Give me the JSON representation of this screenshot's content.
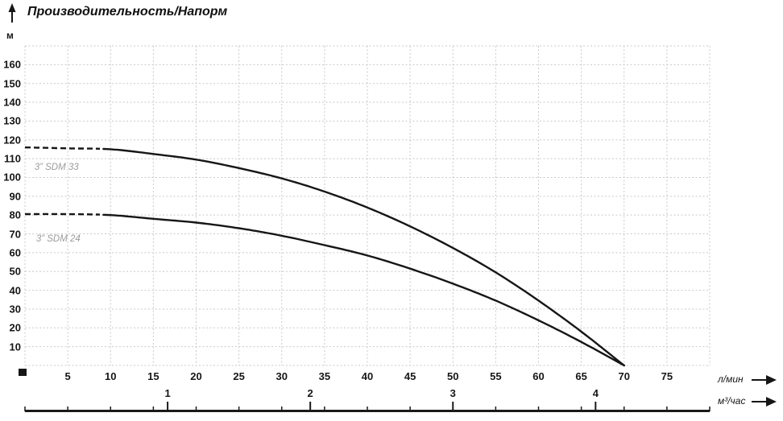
{
  "header": {
    "title": "Производительность/Напорм"
  },
  "colors": {
    "curve": "#161616",
    "grid": "#c9c9c9",
    "axis_text": "#161616",
    "series_label": "#9b9b9b",
    "scale_bar": "#1a1a1a"
  },
  "icons": {
    "up_arrow": "axis-up-arrow",
    "right_arrow_lmin": "axis-right-arrow",
    "right_arrow_m3h": "axis-right-arrow",
    "origin_marker": "origin-square-marker"
  },
  "chart_data": {
    "type": "line",
    "title": "Производительность/Напорм",
    "xlabel": "л/мин",
    "ylabel": "м",
    "xlim": [
      0,
      80
    ],
    "ylim": [
      0,
      170
    ],
    "x_grid_step": 5,
    "y_grid_step": 10,
    "grid": "dotted",
    "x_ticks": [
      5,
      10,
      15,
      20,
      25,
      30,
      35,
      40,
      45,
      50,
      55,
      60,
      65,
      70,
      75
    ],
    "y_ticks": [
      10,
      20,
      30,
      40,
      50,
      60,
      70,
      80,
      90,
      100,
      110,
      120,
      130,
      140,
      150,
      160
    ],
    "secondary_x": {
      "unit": "м³/час",
      "ticks": [
        1,
        2,
        3,
        4
      ],
      "lmin_per_unit": 16.6667
    },
    "series": [
      {
        "name": "3” SDM 33",
        "dash_until": 9,
        "label_pos": {
          "q": 1.1,
          "h": 108
        },
        "points": [
          [
            0,
            116
          ],
          [
            5,
            115.5
          ],
          [
            10,
            115
          ],
          [
            15,
            112.5
          ],
          [
            20,
            109.5
          ],
          [
            25,
            105
          ],
          [
            30,
            99.5
          ],
          [
            35,
            92.5
          ],
          [
            40,
            84
          ],
          [
            45,
            74
          ],
          [
            50,
            62.5
          ],
          [
            55,
            49.5
          ],
          [
            60,
            34.5
          ],
          [
            65,
            18
          ],
          [
            70,
            0
          ]
        ]
      },
      {
        "name": "3” SDM 24",
        "dash_until": 9,
        "label_pos": {
          "q": 1.3,
          "h": 70
        },
        "points": [
          [
            0,
            80.5
          ],
          [
            5,
            80.5
          ],
          [
            10,
            80
          ],
          [
            15,
            78
          ],
          [
            20,
            76
          ],
          [
            25,
            73
          ],
          [
            30,
            69
          ],
          [
            35,
            64
          ],
          [
            40,
            58.5
          ],
          [
            45,
            51.5
          ],
          [
            50,
            43.5
          ],
          [
            55,
            34.5
          ],
          [
            60,
            24
          ],
          [
            65,
            12.5
          ],
          [
            70,
            0
          ]
        ]
      }
    ]
  }
}
